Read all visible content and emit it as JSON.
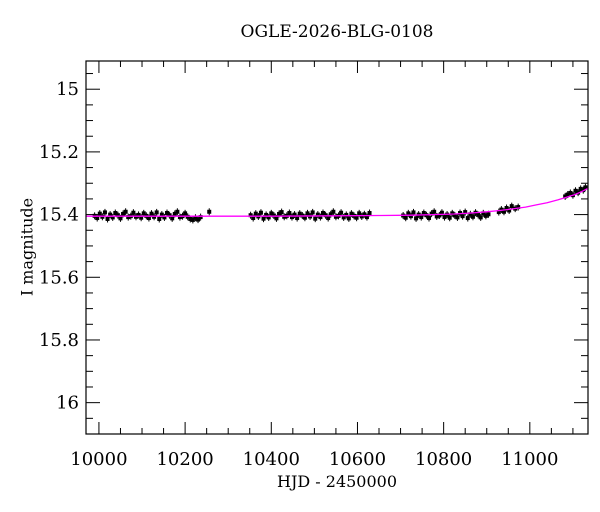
{
  "chart_data": {
    "type": "scatter",
    "title": "OGLE-2026-BLG-0108",
    "xlabel": "HJD - 2450000",
    "ylabel": "I magnitude",
    "xlim": [
      9970,
      11135
    ],
    "ylim_top": 14.91,
    "ylim_bottom": 16.1,
    "y_axis_inverted": true,
    "grid": false,
    "legend": "none",
    "x_major_ticks": [
      10000,
      10200,
      10400,
      10600,
      10800,
      11000
    ],
    "x_tick_labels": [
      "10000",
      "10200",
      "10400",
      "10600",
      "10800",
      "11000"
    ],
    "x_minor_step": 50,
    "y_major_ticks": [
      15.0,
      15.2,
      15.4,
      15.6,
      15.8,
      16.0
    ],
    "y_tick_labels": [
      "15",
      "15.2",
      "15.4",
      "15.6",
      "15.8",
      "16"
    ],
    "y_minor_step": 0.05,
    "point_color": "#000000",
    "model_color": "#ff00ff",
    "frame_color": "#000000",
    "points": [
      [
        9990,
        15.404
      ],
      [
        9996,
        15.411
      ],
      [
        10002,
        15.397
      ],
      [
        10008,
        15.407
      ],
      [
        10014,
        15.393
      ],
      [
        10020,
        15.414
      ],
      [
        10026,
        15.4
      ],
      [
        10032,
        15.409
      ],
      [
        10038,
        15.395
      ],
      [
        10044,
        15.402
      ],
      [
        10050,
        15.412
      ],
      [
        10056,
        15.398
      ],
      [
        10062,
        15.391
      ],
      [
        10068,
        15.408
      ],
      [
        10074,
        15.405
      ],
      [
        10080,
        15.394
      ],
      [
        10086,
        15.407
      ],
      [
        10092,
        15.401
      ],
      [
        10098,
        15.41
      ],
      [
        10104,
        15.396
      ],
      [
        10110,
        15.404
      ],
      [
        10116,
        15.411
      ],
      [
        10122,
        15.397
      ],
      [
        10128,
        15.407
      ],
      [
        10134,
        15.393
      ],
      [
        10140,
        15.414
      ],
      [
        10146,
        15.4
      ],
      [
        10152,
        15.409
      ],
      [
        10158,
        15.395
      ],
      [
        10164,
        15.402
      ],
      [
        10170,
        15.412
      ],
      [
        10176,
        15.398
      ],
      [
        10182,
        15.391
      ],
      [
        10188,
        15.408
      ],
      [
        10194,
        15.405
      ],
      [
        10200,
        15.396
      ],
      [
        10206,
        15.407
      ],
      [
        10212,
        15.414
      ],
      [
        10218,
        15.417
      ],
      [
        10224,
        15.41
      ],
      [
        10230,
        15.416
      ],
      [
        10236,
        15.408
      ],
      [
        10256,
        15.391
      ],
      [
        10352,
        15.402
      ],
      [
        10358,
        15.411
      ],
      [
        10364,
        15.397
      ],
      [
        10370,
        15.406
      ],
      [
        10376,
        15.394
      ],
      [
        10382,
        15.413
      ],
      [
        10388,
        15.401
      ],
      [
        10394,
        15.409
      ],
      [
        10400,
        15.396
      ],
      [
        10406,
        15.403
      ],
      [
        10412,
        15.412
      ],
      [
        10418,
        15.398
      ],
      [
        10424,
        15.392
      ],
      [
        10430,
        15.407
      ],
      [
        10436,
        15.404
      ],
      [
        10442,
        15.395
      ],
      [
        10448,
        15.408
      ],
      [
        10454,
        15.4
      ],
      [
        10460,
        15.411
      ],
      [
        10466,
        15.397
      ],
      [
        10472,
        15.403
      ],
      [
        10478,
        15.41
      ],
      [
        10484,
        15.396
      ],
      [
        10490,
        15.406
      ],
      [
        10496,
        15.393
      ],
      [
        10502,
        15.413
      ],
      [
        10508,
        15.4
      ],
      [
        10514,
        15.408
      ],
      [
        10520,
        15.395
      ],
      [
        10526,
        15.402
      ],
      [
        10532,
        15.411
      ],
      [
        10538,
        15.399
      ],
      [
        10544,
        15.391
      ],
      [
        10550,
        15.407
      ],
      [
        10556,
        15.404
      ],
      [
        10562,
        15.394
      ],
      [
        10568,
        15.409
      ],
      [
        10574,
        15.401
      ],
      [
        10580,
        15.412
      ],
      [
        10586,
        15.397
      ],
      [
        10592,
        15.404
      ],
      [
        10598,
        15.41
      ],
      [
        10604,
        15.396
      ],
      [
        10610,
        15.406
      ],
      [
        10616,
        15.399
      ],
      [
        10622,
        15.408
      ],
      [
        10628,
        15.395
      ],
      [
        10706,
        15.403
      ],
      [
        10712,
        15.41
      ],
      [
        10718,
        15.396
      ],
      [
        10724,
        15.405
      ],
      [
        10730,
        15.393
      ],
      [
        10736,
        15.412
      ],
      [
        10742,
        15.4
      ],
      [
        10748,
        15.408
      ],
      [
        10754,
        15.395
      ],
      [
        10760,
        15.402
      ],
      [
        10766,
        15.411
      ],
      [
        10772,
        15.397
      ],
      [
        10778,
        15.391
      ],
      [
        10784,
        15.406
      ],
      [
        10790,
        15.403
      ],
      [
        10796,
        15.394
      ],
      [
        10802,
        15.408
      ],
      [
        10808,
        15.4
      ],
      [
        10814,
        15.41
      ],
      [
        10820,
        15.396
      ],
      [
        10826,
        15.403
      ],
      [
        10832,
        15.409
      ],
      [
        10838,
        15.395
      ],
      [
        10844,
        15.405
      ],
      [
        10850,
        15.392
      ],
      [
        10856,
        15.411
      ],
      [
        10862,
        15.399
      ],
      [
        10868,
        15.407
      ],
      [
        10874,
        15.394
      ],
      [
        10880,
        15.401
      ],
      [
        10886,
        15.409
      ],
      [
        10892,
        15.396
      ],
      [
        10898,
        15.404
      ],
      [
        10904,
        15.399
      ],
      [
        10928,
        15.392
      ],
      [
        10934,
        15.384
      ],
      [
        10940,
        15.391
      ],
      [
        10946,
        15.379
      ],
      [
        10952,
        15.387
      ],
      [
        10958,
        15.373
      ],
      [
        10966,
        15.381
      ],
      [
        10973,
        15.376
      ],
      [
        11082,
        15.342
      ],
      [
        11088,
        15.336
      ],
      [
        11094,
        15.331
      ],
      [
        11100,
        15.338
      ],
      [
        11106,
        15.324
      ],
      [
        11112,
        15.33
      ],
      [
        11118,
        15.318
      ],
      [
        11124,
        15.322
      ],
      [
        11129,
        15.313
      ]
    ],
    "model": [
      [
        9970,
        15.405
      ],
      [
        10200,
        15.405
      ],
      [
        10400,
        15.405
      ],
      [
        10550,
        15.404
      ],
      [
        10650,
        15.403
      ],
      [
        10725,
        15.402
      ],
      [
        10775,
        15.4
      ],
      [
        10825,
        15.398
      ],
      [
        10865,
        15.395
      ],
      [
        10900,
        15.391
      ],
      [
        10930,
        15.387
      ],
      [
        10960,
        15.382
      ],
      [
        10990,
        15.376
      ],
      [
        11015,
        15.369
      ],
      [
        11040,
        15.362
      ],
      [
        11065,
        15.353
      ],
      [
        11085,
        15.345
      ],
      [
        11105,
        15.336
      ],
      [
        11120,
        15.327
      ],
      [
        11135,
        15.316
      ]
    ]
  }
}
